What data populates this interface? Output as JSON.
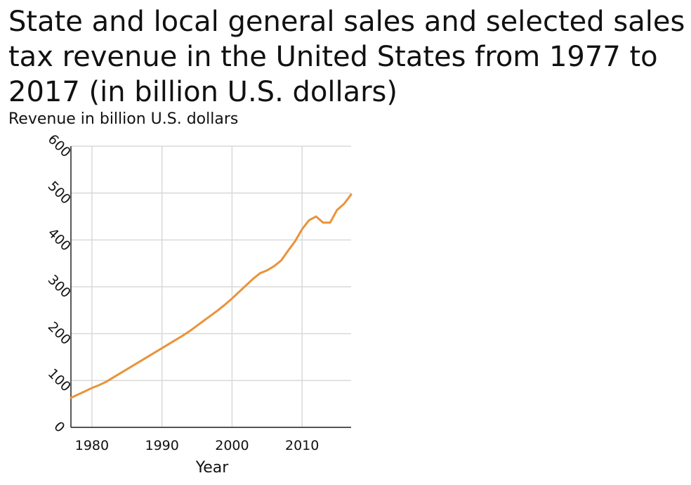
{
  "chart_data": {
    "type": "line",
    "title": "State and local general sales and selected sales tax revenue in the United States from 1977 to 2017 (in billion U.S. dollars)",
    "xlabel": "Year",
    "ylabel": "Revenue in billion U.S. dollars",
    "xlim": [
      1977,
      2017
    ],
    "ylim": [
      0,
      600
    ],
    "xticks": [
      1980,
      1990,
      2000,
      2010
    ],
    "yticks": [
      0,
      100,
      200,
      300,
      400,
      500,
      600
    ],
    "grid": true,
    "line_color": "#e8943a",
    "series": [
      {
        "x": [
          1977,
          1978,
          1979,
          1980,
          1981,
          1982,
          1983,
          1984,
          1985,
          1986,
          1987,
          1988,
          1989,
          1990,
          1991,
          1992,
          1993,
          1994,
          1995,
          1996,
          1997,
          1998,
          1999,
          2000,
          2001,
          2002,
          2003,
          2004,
          2005,
          2006,
          2007,
          2008,
          2009,
          2010,
          2011,
          2012,
          2013,
          2014,
          2015,
          2016,
          2017
        ],
        "values": [
          63,
          70,
          77,
          84,
          90,
          97,
          106,
          115,
          124,
          133,
          142,
          151,
          160,
          169,
          178,
          187,
          196,
          206,
          217,
          228,
          239,
          250,
          262,
          275,
          289,
          303,
          317,
          329,
          335,
          344,
          356,
          377,
          397,
          423,
          442,
          450,
          437,
          437,
          464,
          477,
          497
        ]
      }
    ]
  }
}
